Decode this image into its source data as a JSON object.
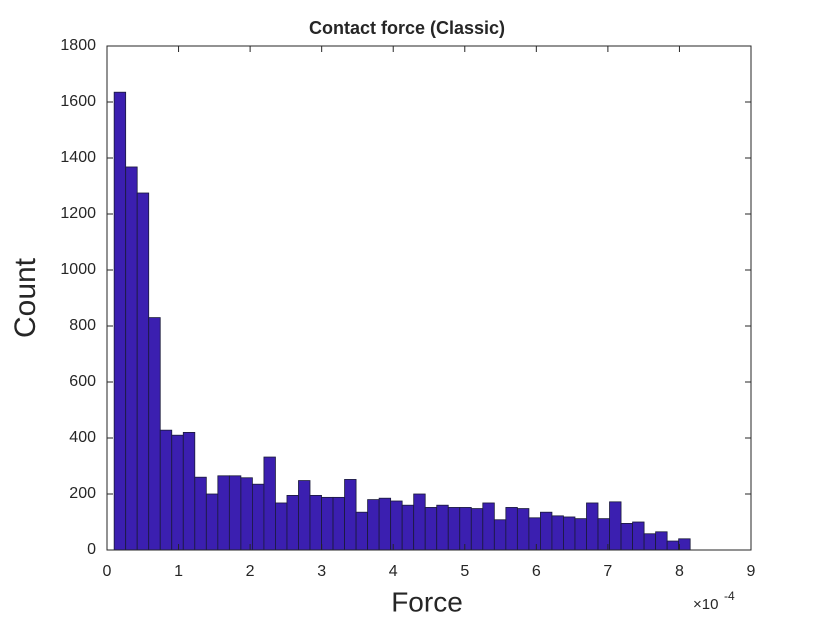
{
  "chart_data": {
    "type": "histogram",
    "title": "Contact force (Classic)",
    "x_label": "Force",
    "y_label": "Count",
    "x_multiplier": {
      "base": "×10",
      "exponent": "-4"
    },
    "bins": [
      0.1,
      0.261,
      0.422,
      0.583,
      0.744,
      0.905,
      1.066,
      1.227,
      1.388,
      1.549,
      1.71,
      1.871,
      2.032,
      2.193,
      2.354,
      2.515,
      2.676,
      2.837,
      2.998,
      3.159,
      3.32,
      3.481,
      3.642,
      3.803,
      3.964,
      4.125,
      4.286,
      4.447,
      4.608,
      4.769,
      4.93,
      5.091,
      5.252,
      5.413,
      5.574,
      5.735,
      5.896,
      6.057,
      6.218,
      6.379,
      6.54,
      6.701,
      6.862,
      7.023,
      7.184,
      7.345,
      7.506,
      7.667,
      7.828,
      7.989,
      8.15
    ],
    "counts": [
      1635,
      1368,
      1275,
      830,
      428,
      410,
      420,
      260,
      200,
      265,
      265,
      258,
      235,
      332,
      168,
      195,
      248,
      195,
      188,
      188,
      252,
      135,
      180,
      185,
      175,
      160,
      200,
      152,
      160,
      152,
      152,
      148,
      168,
      108,
      152,
      148,
      115,
      135,
      122,
      118,
      112,
      168,
      112,
      172,
      95,
      100,
      58,
      65,
      32,
      40
    ],
    "color": "#3b1fb0",
    "edge_color": "#1a1a3a",
    "xlim": [
      0,
      9
    ],
    "xticks": [
      0,
      1,
      2,
      3,
      4,
      5,
      6,
      7,
      8,
      9
    ],
    "ylim": [
      0,
      1800
    ],
    "yticks": [
      0,
      200,
      400,
      600,
      800,
      1000,
      1200,
      1400,
      1600,
      1800
    ]
  }
}
